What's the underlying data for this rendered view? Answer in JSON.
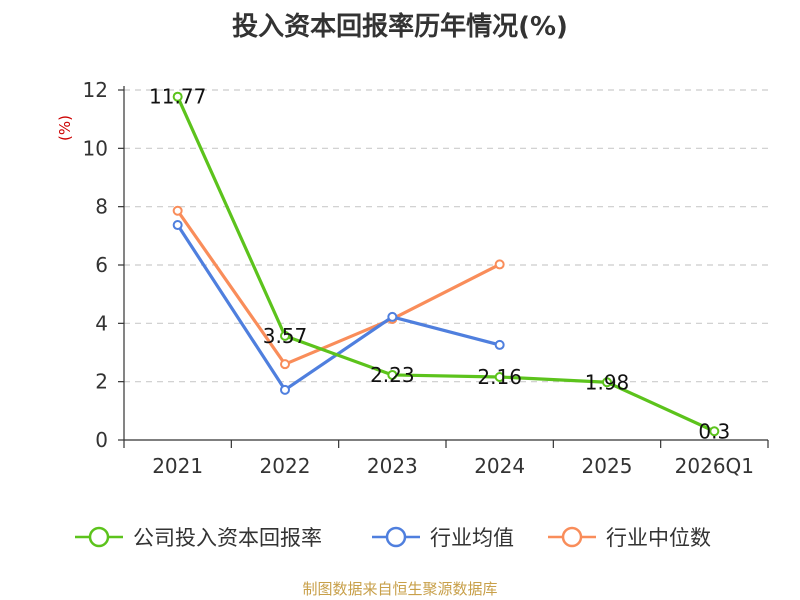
{
  "chart_data": {
    "type": "line",
    "title": "投入资本回报率历年情况(%)",
    "ylabel": "(%)",
    "xlabel": "",
    "categories": [
      "2021",
      "2022",
      "2023",
      "2024",
      "2025",
      "2026Q1"
    ],
    "ylim": [
      0,
      12
    ],
    "yticks": [
      0,
      2,
      4,
      6,
      8,
      10,
      12
    ],
    "grid": true,
    "legend_position": "bottom",
    "series": [
      {
        "name": "公司投入资本回报率",
        "color": "#5cc31c",
        "values": [
          11.77,
          3.57,
          2.23,
          2.16,
          1.98,
          0.3
        ],
        "data_labels": [
          "11.77",
          "3.57",
          "2.23",
          "2.16",
          "1.98",
          "0.3"
        ]
      },
      {
        "name": "行业均值",
        "color": "#4f7fde",
        "values": [
          7.37,
          1.72,
          4.22,
          3.26,
          null,
          null
        ]
      },
      {
        "name": "行业中位数",
        "color": "#f98d5a",
        "values": [
          7.86,
          2.6,
          4.15,
          6.02,
          null,
          null
        ]
      }
    ]
  },
  "source": "制图数据来自恒生聚源数据库"
}
